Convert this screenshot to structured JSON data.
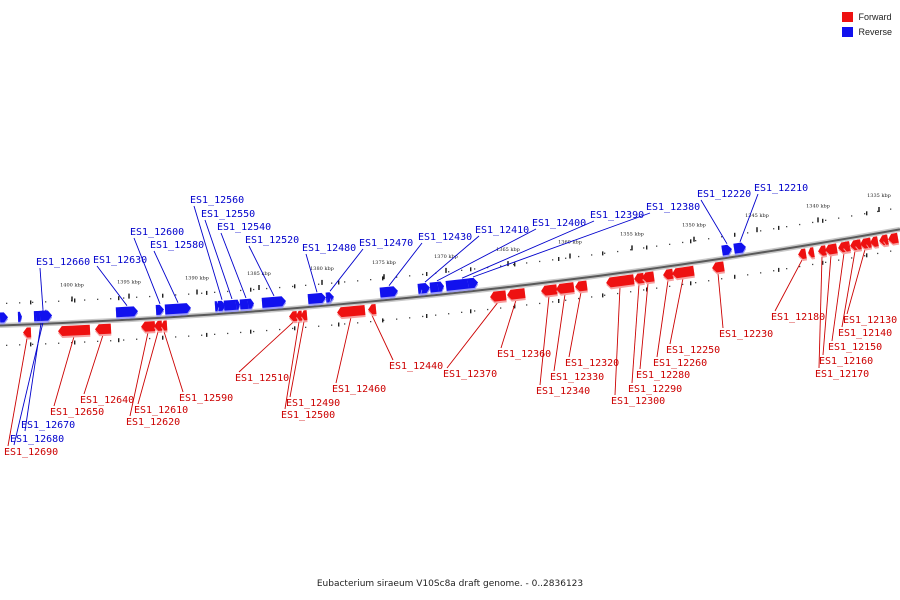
{
  "legend": {
    "forward": {
      "label": "Forward",
      "color": "#ee1111"
    },
    "reverse": {
      "label": "Reverse",
      "color": "#1111ee"
    }
  },
  "caption": "Eubacterium siraeum V10Sc8a draft genome. - 0..2836123",
  "kbp_ticks": [
    "1400 kbp",
    "1395 kbp",
    "1390 kbp",
    "1385 kbp",
    "1380 kbp",
    "1375 kbp",
    "1370 kbp",
    "1365 kbp",
    "1360 kbp",
    "1355 kbp",
    "1350 kbp",
    "1345 kbp",
    "1340 kbp",
    "1335 kbp"
  ],
  "genes": [
    {
      "id": "ES1_12660",
      "strand": "reverse"
    },
    {
      "id": "ES1_12630",
      "strand": "reverse"
    },
    {
      "id": "ES1_12600",
      "strand": "reverse"
    },
    {
      "id": "ES1_12580",
      "strand": "reverse"
    },
    {
      "id": "ES1_12560",
      "strand": "reverse"
    },
    {
      "id": "ES1_12550",
      "strand": "reverse"
    },
    {
      "id": "ES1_12540",
      "strand": "reverse"
    },
    {
      "id": "ES1_12520",
      "strand": "reverse"
    },
    {
      "id": "ES1_12480",
      "strand": "reverse"
    },
    {
      "id": "ES1_12470",
      "strand": "reverse"
    },
    {
      "id": "ES1_12430",
      "strand": "reverse"
    },
    {
      "id": "ES1_12410",
      "strand": "reverse"
    },
    {
      "id": "ES1_12400",
      "strand": "reverse"
    },
    {
      "id": "ES1_12390",
      "strand": "reverse"
    },
    {
      "id": "ES1_12380",
      "strand": "reverse"
    },
    {
      "id": "ES1_12220",
      "strand": "reverse"
    },
    {
      "id": "ES1_12210",
      "strand": "reverse"
    },
    {
      "id": "ES1_12670",
      "strand": "reverse"
    },
    {
      "id": "ES1_12680",
      "strand": "reverse"
    },
    {
      "id": "ES1_12690",
      "strand": "forward"
    },
    {
      "id": "ES1_12650",
      "strand": "forward"
    },
    {
      "id": "ES1_12640",
      "strand": "forward"
    },
    {
      "id": "ES1_12620",
      "strand": "forward"
    },
    {
      "id": "ES1_12610",
      "strand": "forward"
    },
    {
      "id": "ES1_12590",
      "strand": "forward"
    },
    {
      "id": "ES1_12510",
      "strand": "forward"
    },
    {
      "id": "ES1_12500",
      "strand": "forward"
    },
    {
      "id": "ES1_12490",
      "strand": "forward"
    },
    {
      "id": "ES1_12460",
      "strand": "forward"
    },
    {
      "id": "ES1_12440",
      "strand": "forward"
    },
    {
      "id": "ES1_12370",
      "strand": "forward"
    },
    {
      "id": "ES1_12360",
      "strand": "forward"
    },
    {
      "id": "ES1_12340",
      "strand": "forward"
    },
    {
      "id": "ES1_12330",
      "strand": "forward"
    },
    {
      "id": "ES1_12320",
      "strand": "forward"
    },
    {
      "id": "ES1_12300",
      "strand": "forward"
    },
    {
      "id": "ES1_12290",
      "strand": "forward"
    },
    {
      "id": "ES1_12280",
      "strand": "forward"
    },
    {
      "id": "ES1_12260",
      "strand": "forward"
    },
    {
      "id": "ES1_12250",
      "strand": "forward"
    },
    {
      "id": "ES1_12230",
      "strand": "forward"
    },
    {
      "id": "ES1_12180",
      "strand": "forward"
    },
    {
      "id": "ES1_12170",
      "strand": "forward"
    },
    {
      "id": "ES1_12160",
      "strand": "forward"
    },
    {
      "id": "ES1_12150",
      "strand": "forward"
    },
    {
      "id": "ES1_12140",
      "strand": "forward"
    },
    {
      "id": "ES1_12130",
      "strand": "forward"
    }
  ]
}
